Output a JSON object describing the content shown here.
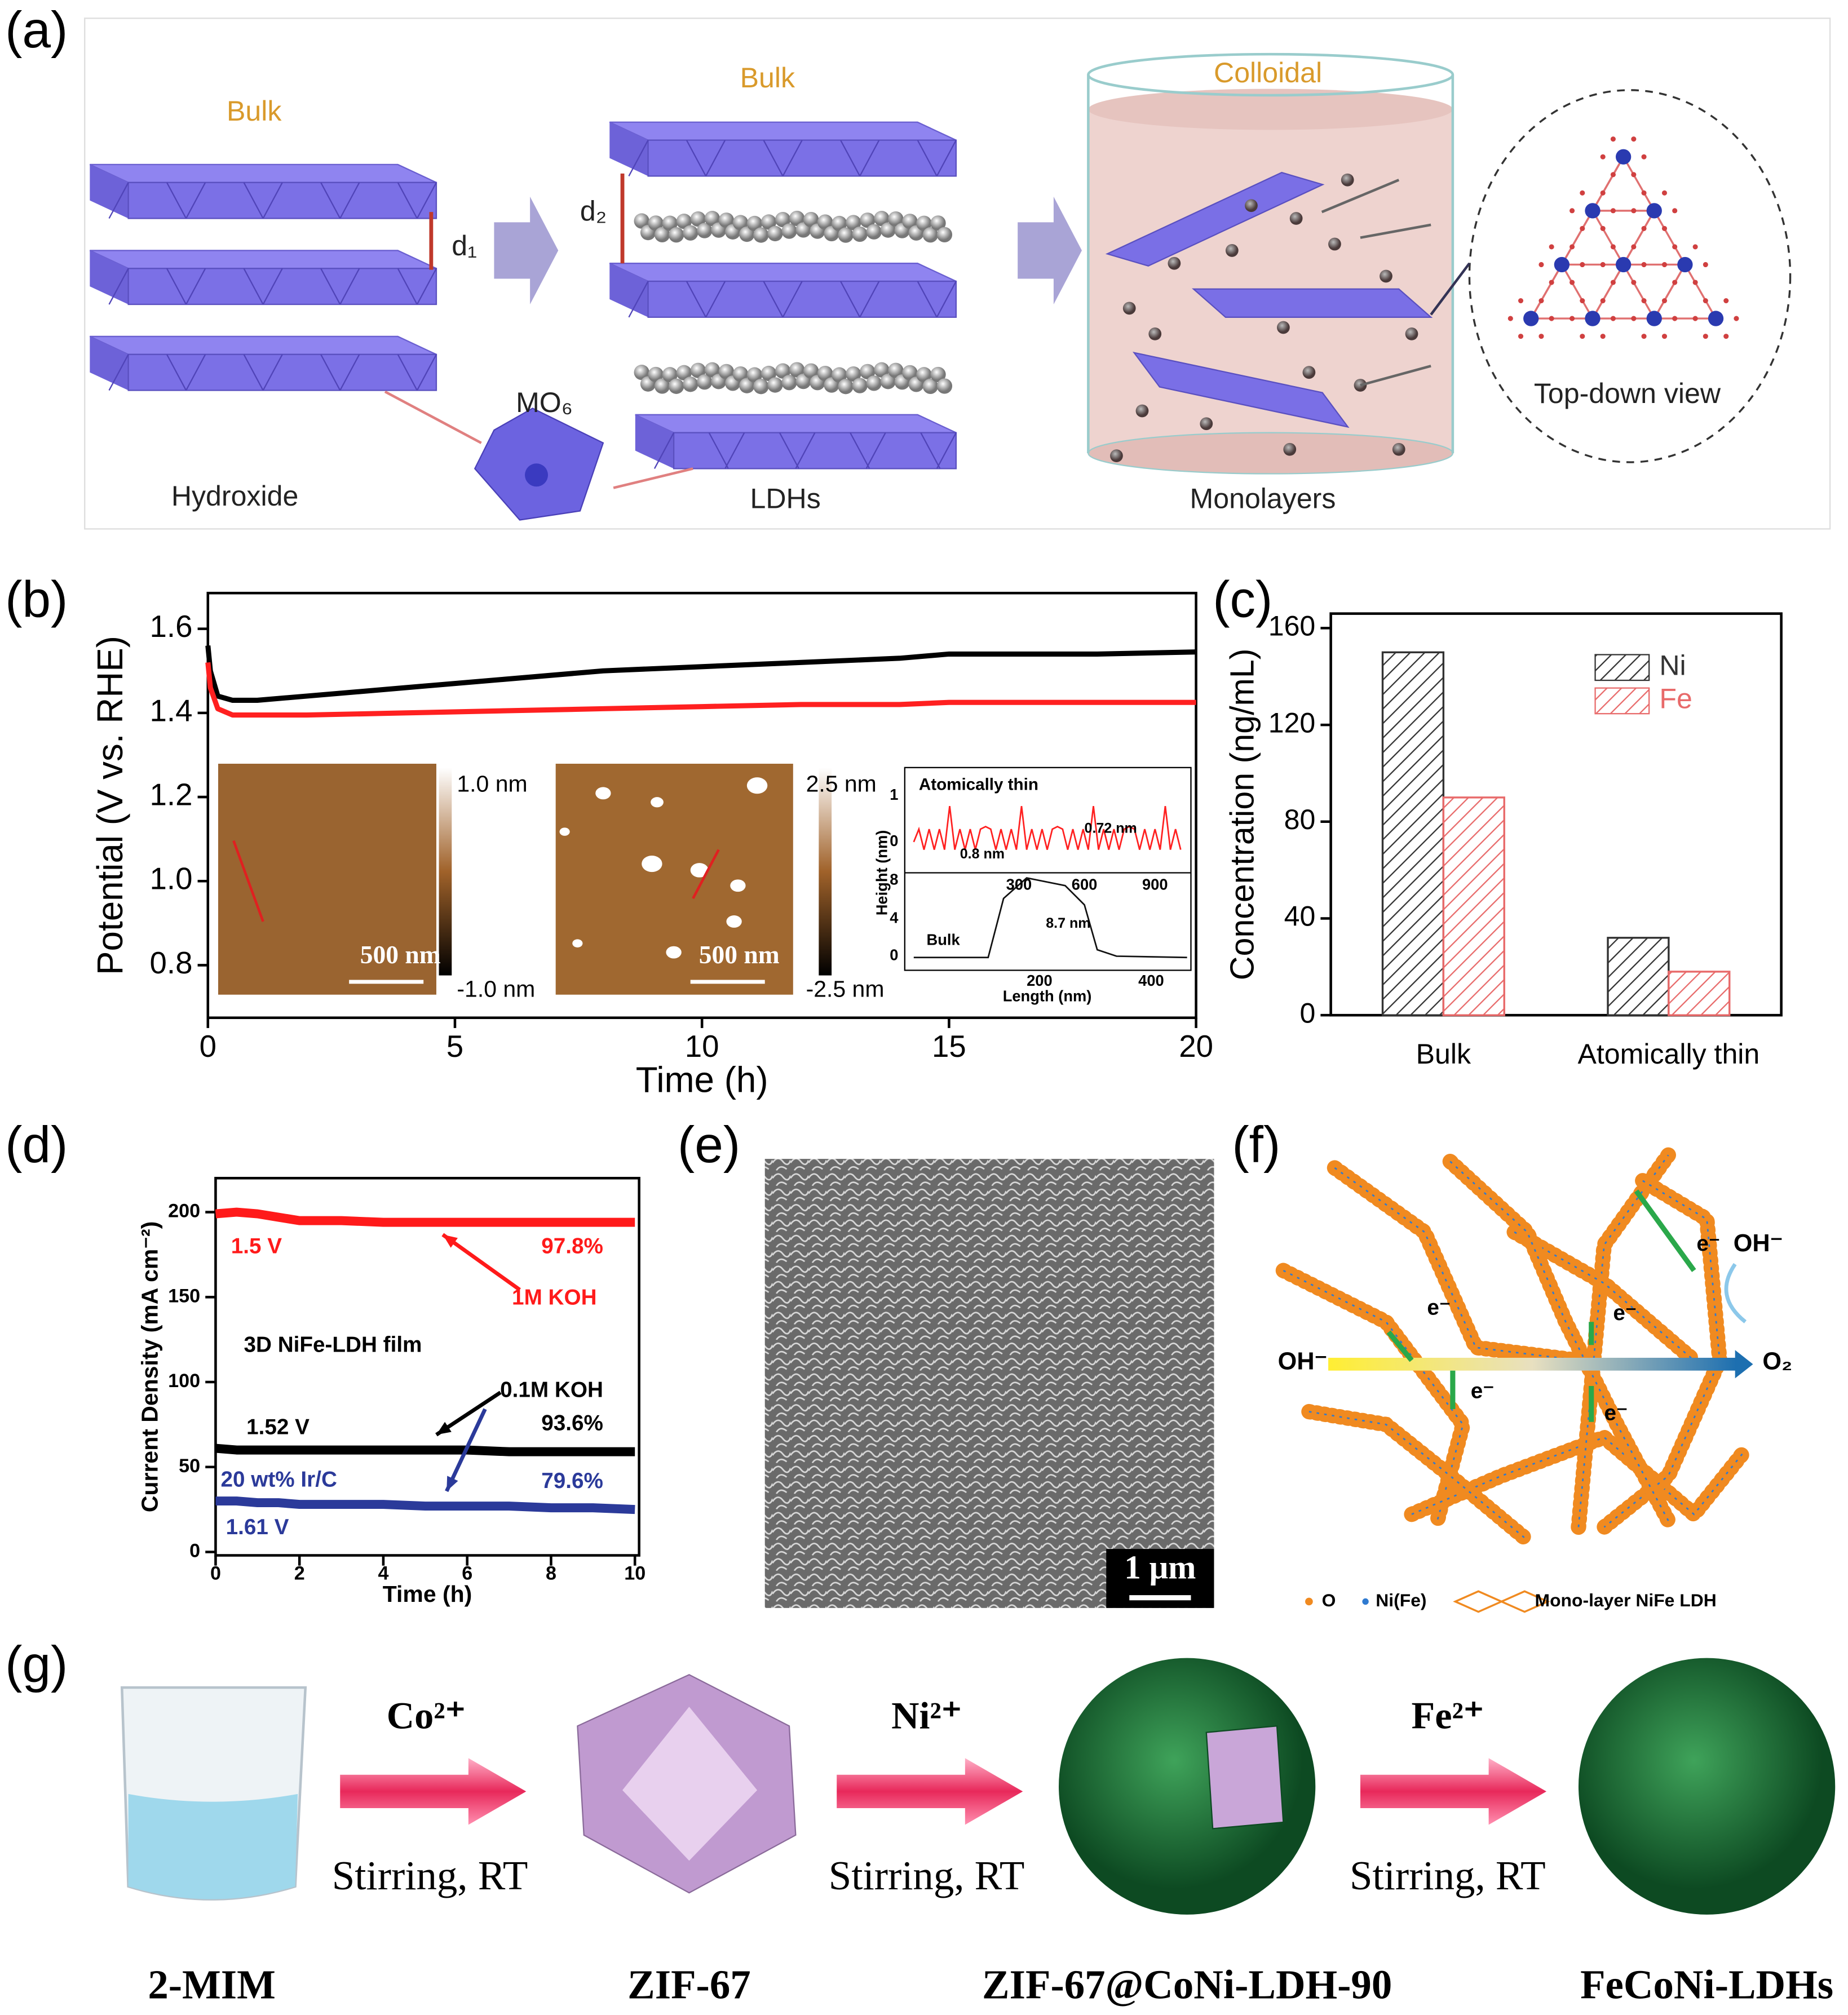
{
  "panel_labels": [
    "(a)",
    "(b)",
    "(c)",
    "(d)",
    "(e)",
    "(f)",
    "(g)"
  ],
  "diagram_a": {
    "bulk_1": "Bulk",
    "bulk_2": "Bulk",
    "colloidal": "Colloidal",
    "d1": "d₁",
    "d2": "d₂",
    "mo6": "MO₆",
    "hydroxide": "Hydroxide",
    "ldhs": "LDHs",
    "monolayers": "Monolayers",
    "top_down": "Top-down view"
  },
  "chart_data": [
    {
      "type": "line",
      "xlabel": "Time (h)",
      "ylabel": "Potential (V vs. RHE)",
      "x": [
        0,
        0.05,
        0.2,
        0.5,
        1,
        2,
        4,
        6,
        8,
        10,
        12,
        14,
        15,
        16,
        18,
        20
      ],
      "xlim": [
        0,
        20
      ],
      "xticks": [
        0,
        5,
        10,
        15,
        20
      ],
      "ylim": [
        0.675,
        1.685
      ],
      "yticks": [
        0.8,
        {
          "value": 1,
          "label": "1.0"
        },
        1.2,
        1.4,
        1.6
      ],
      "series": [
        {
          "color": "#000000",
          "values": [
            1.56,
            1.5,
            1.44,
            1.43,
            1.43,
            1.44,
            1.46,
            1.48,
            1.5,
            1.51,
            1.52,
            1.53,
            1.54,
            1.54,
            1.54,
            1.545
          ]
        },
        {
          "color": "#ff2020",
          "values": [
            1.52,
            1.46,
            1.41,
            1.395,
            1.395,
            1.395,
            1.4,
            1.405,
            1.41,
            1.415,
            1.42,
            1.42,
            1.425,
            1.425,
            1.425,
            1.425
          ]
        }
      ],
      "insets": {
        "colorbar_1": [
          "1.0 nm",
          "-1.0 nm"
        ],
        "scale_bar": "500 nm",
        "colorbar_2": [
          "2.5 nm",
          "-2.5 nm"
        ],
        "profile": {
          "title": "Atomically thin",
          "ylabel": "Height (nm)",
          "xlabel": "Length (nm)",
          "bulk": "Bulk",
          "steps": [
            "0.8 nm",
            "0.72 nm",
            "8.7 nm"
          ],
          "top_ticks": [
            "300",
            "600",
            "900"
          ],
          "bottom_ticks": [
            "200",
            "400"
          ],
          "upper_yticks": [
            "1",
            "0"
          ],
          "lower_yticks": [
            "8",
            "4",
            "0"
          ]
        }
      }
    },
    {
      "type": "bar",
      "ylabel": "Concentration (ng/mL)",
      "categories": [
        "Bulk",
        "Atomically thin"
      ],
      "series": [
        {
          "name": "Ni",
          "color": "#333333",
          "values": [
            150,
            32
          ]
        },
        {
          "name": "Fe",
          "color": "#e86a6a",
          "values": [
            90,
            18
          ]
        }
      ],
      "ylim": [
        0,
        166
      ],
      "yticks": [
        0,
        40,
        80,
        120,
        160
      ],
      "hatch": true,
      "legend": "upper right"
    },
    {
      "type": "line",
      "xlabel": "Time (h)",
      "ylabel": "Current Density (mA cm⁻²)",
      "x": [
        0,
        0.5,
        1,
        1.5,
        2,
        3,
        4,
        5,
        6,
        7,
        8,
        9,
        10
      ],
      "xlim": [
        0,
        10.1
      ],
      "xticks": [
        0,
        2,
        4,
        6,
        8,
        10
      ],
      "ylim": [
        -2,
        220
      ],
      "yticks": [
        0,
        50,
        100,
        150,
        200
      ],
      "series": [
        {
          "color": "#ff1a1a",
          "values": [
            199,
            200,
            199,
            197,
            195,
            195,
            194,
            194,
            194,
            194,
            194,
            194,
            194
          ]
        },
        {
          "color": "#000000",
          "values": [
            61,
            60,
            60,
            60,
            60,
            60,
            60,
            60,
            60,
            59,
            59,
            59,
            59
          ]
        },
        {
          "color": "#2b3a9a",
          "values": [
            30,
            30,
            29,
            29,
            28,
            28,
            28,
            27,
            27,
            27,
            26,
            26,
            25
          ]
        }
      ],
      "annotations": [
        "1.5 V",
        "97.8%",
        "1M KOH",
        "3D NiFe-LDH film",
        "0.1M KOH",
        "1.52 V",
        "93.6%",
        "20 wt% Ir/C",
        "79.6%",
        "1.61 V"
      ]
    }
  ],
  "image_e": {
    "scale_bar": "1 μm"
  },
  "diagram_f": {
    "electron": "e⁻",
    "oh_left": "OH⁻",
    "oh_right": "OH⁻",
    "o2": "O₂",
    "legend": [
      "O",
      "Ni(Fe)",
      "Mono-layer NiFe LDH"
    ]
  },
  "diagram_g": {
    "reagents": [
      "Co²⁺",
      "Ni²⁺",
      "Fe²⁺"
    ],
    "condition": "Stirring, RT",
    "products": [
      "2-MIM",
      "ZIF-67",
      "ZIF-67@CoNi-LDH-90",
      "FeCoNi-LDHs"
    ]
  }
}
